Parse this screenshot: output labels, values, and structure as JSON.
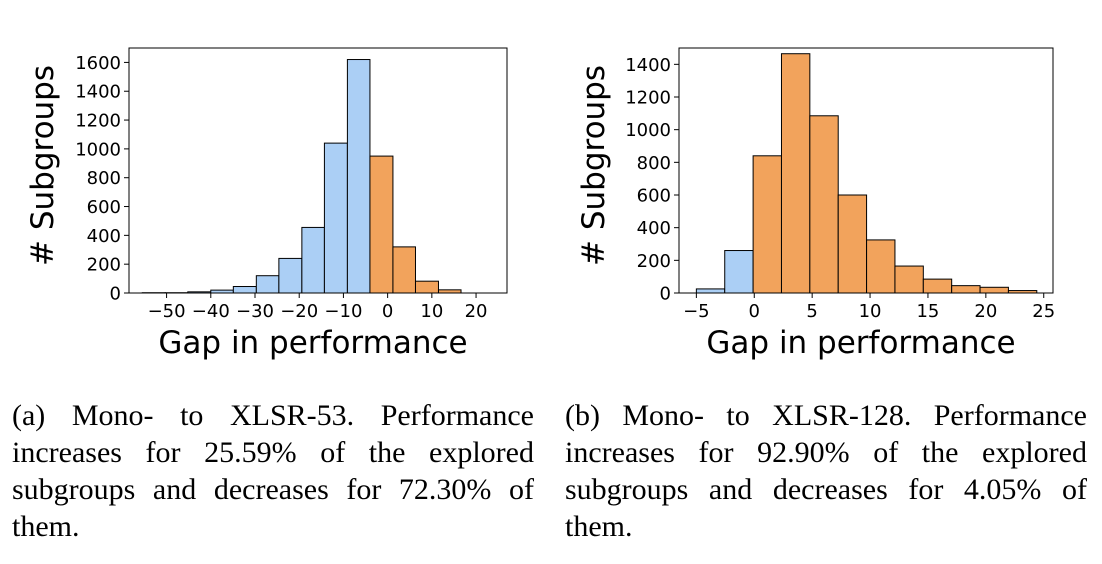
{
  "chart_data": [
    {
      "type": "bar",
      "xlabel": "Gap in performance",
      "ylabel": "# Subgroups",
      "xlim": [
        -58.5,
        27
      ],
      "ylim": [
        0,
        1700
      ],
      "xticks": [
        -50,
        -40,
        -30,
        -20,
        -10,
        0,
        10,
        20
      ],
      "xtick_labels": [
        "−50",
        "−40",
        "−30",
        "−20",
        "−10",
        "0",
        "10",
        "20"
      ],
      "yticks": [
        0,
        200,
        400,
        600,
        800,
        1000,
        1200,
        1400,
        1600
      ],
      "grid": false,
      "colors": {
        "negative": "#abcff5",
        "positive": "#f2a35c",
        "edge": "#000000"
      },
      "bins": [
        {
          "x0": -55.5,
          "x1": -50.3,
          "value": 2,
          "side": "negative"
        },
        {
          "x0": -50.3,
          "x1": -45.2,
          "value": 2,
          "side": "negative"
        },
        {
          "x0": -45.2,
          "x1": -40.0,
          "value": 8,
          "side": "negative"
        },
        {
          "x0": -40.0,
          "x1": -34.9,
          "value": 20,
          "side": "negative"
        },
        {
          "x0": -34.9,
          "x1": -29.7,
          "value": 45,
          "side": "negative"
        },
        {
          "x0": -29.7,
          "x1": -24.6,
          "value": 120,
          "side": "negative"
        },
        {
          "x0": -24.6,
          "x1": -19.4,
          "value": 240,
          "side": "negative"
        },
        {
          "x0": -19.4,
          "x1": -14.3,
          "value": 455,
          "side": "negative"
        },
        {
          "x0": -14.3,
          "x1": -9.1,
          "value": 1040,
          "side": "negative"
        },
        {
          "x0": -9.1,
          "x1": -4.0,
          "value": 1620,
          "side": "negative"
        },
        {
          "x0": -4.0,
          "x1": 1.2,
          "value": 950,
          "side": "positive"
        },
        {
          "x0": 1.2,
          "x1": 6.3,
          "value": 320,
          "side": "positive"
        },
        {
          "x0": 6.3,
          "x1": 11.5,
          "value": 82,
          "side": "positive"
        },
        {
          "x0": 11.5,
          "x1": 16.6,
          "value": 22,
          "side": "positive"
        }
      ]
    },
    {
      "type": "bar",
      "xlabel": "Gap in performance",
      "ylabel": "# Subgroups",
      "xlim": [
        -6.5,
        25.8
      ],
      "ylim": [
        0,
        1500
      ],
      "xticks": [
        -5,
        0,
        5,
        10,
        15,
        20,
        25
      ],
      "xtick_labels": [
        "−5",
        "0",
        "5",
        "10",
        "15",
        "20",
        "25"
      ],
      "yticks": [
        0,
        200,
        400,
        600,
        800,
        1000,
        1200,
        1400
      ],
      "grid": false,
      "colors": {
        "negative": "#abcff5",
        "positive": "#f2a35c",
        "edge": "#000000"
      },
      "bins": [
        {
          "x0": -5.0,
          "x1": -2.55,
          "value": 25,
          "side": "negative"
        },
        {
          "x0": -2.55,
          "x1": -0.1,
          "value": 260,
          "side": "negative"
        },
        {
          "x0": -0.1,
          "x1": 2.35,
          "value": 840,
          "side": "positive"
        },
        {
          "x0": 2.35,
          "x1": 4.8,
          "value": 1465,
          "side": "positive"
        },
        {
          "x0": 4.8,
          "x1": 7.25,
          "value": 1085,
          "side": "positive"
        },
        {
          "x0": 7.25,
          "x1": 9.7,
          "value": 600,
          "side": "positive"
        },
        {
          "x0": 9.7,
          "x1": 12.15,
          "value": 325,
          "side": "positive"
        },
        {
          "x0": 12.15,
          "x1": 14.6,
          "value": 165,
          "side": "positive"
        },
        {
          "x0": 14.6,
          "x1": 17.05,
          "value": 85,
          "side": "positive"
        },
        {
          "x0": 17.05,
          "x1": 19.5,
          "value": 45,
          "side": "positive"
        },
        {
          "x0": 19.5,
          "x1": 21.95,
          "value": 35,
          "side": "positive"
        },
        {
          "x0": 21.95,
          "x1": 24.4,
          "value": 15,
          "side": "positive"
        }
      ]
    }
  ],
  "captions": {
    "a": "(a) Mono- to XLSR-53. Performance increases for 25.59% of the explored subgroups and decreases for 72.30% of them.",
    "b": "(b) Mono- to XLSR-128. Performance increases for 92.90% of the explored subgroups and decreases for 4.05% of them."
  }
}
